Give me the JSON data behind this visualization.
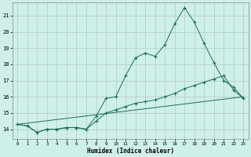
{
  "xlabel": "Humidex (Indice chaleur)",
  "background_color": "#cff0e8",
  "grid_color": "#b0c8c0",
  "line_color": "#1a6b5a",
  "xlim": [
    -0.5,
    23.5
  ],
  "ylim": [
    13.4,
    21.8
  ],
  "yticks": [
    14,
    15,
    16,
    17,
    18,
    19,
    20,
    21
  ],
  "xticks": [
    0,
    1,
    2,
    3,
    4,
    5,
    6,
    7,
    8,
    9,
    10,
    11,
    12,
    13,
    14,
    15,
    16,
    17,
    18,
    19,
    20,
    21,
    22,
    23
  ],
  "series1_x": [
    0,
    1,
    2,
    3,
    4,
    5,
    6,
    7,
    8,
    9,
    10,
    11,
    12,
    13,
    14,
    15,
    16,
    17,
    18,
    19,
    20,
    21,
    22,
    23
  ],
  "series1_y": [
    14.3,
    14.2,
    13.8,
    14.0,
    14.0,
    14.1,
    14.1,
    14.0,
    14.8,
    15.9,
    16.0,
    17.3,
    18.4,
    18.7,
    18.5,
    19.2,
    20.5,
    21.5,
    20.6,
    19.3,
    18.1,
    17.0,
    16.6,
    15.9
  ],
  "series2_x": [
    0,
    1,
    2,
    3,
    4,
    5,
    6,
    7,
    8,
    9,
    10,
    11,
    12,
    13,
    14,
    15,
    16,
    17,
    18,
    19,
    20,
    21,
    22,
    23
  ],
  "series2_y": [
    14.3,
    14.2,
    13.8,
    14.0,
    14.0,
    14.1,
    14.1,
    14.0,
    14.5,
    15.0,
    15.2,
    15.4,
    15.6,
    15.7,
    15.8,
    16.0,
    16.2,
    16.5,
    16.7,
    16.9,
    17.1,
    17.3,
    16.4,
    15.9
  ],
  "series3_x": [
    0,
    23
  ],
  "series3_y": [
    14.3,
    16.0
  ]
}
